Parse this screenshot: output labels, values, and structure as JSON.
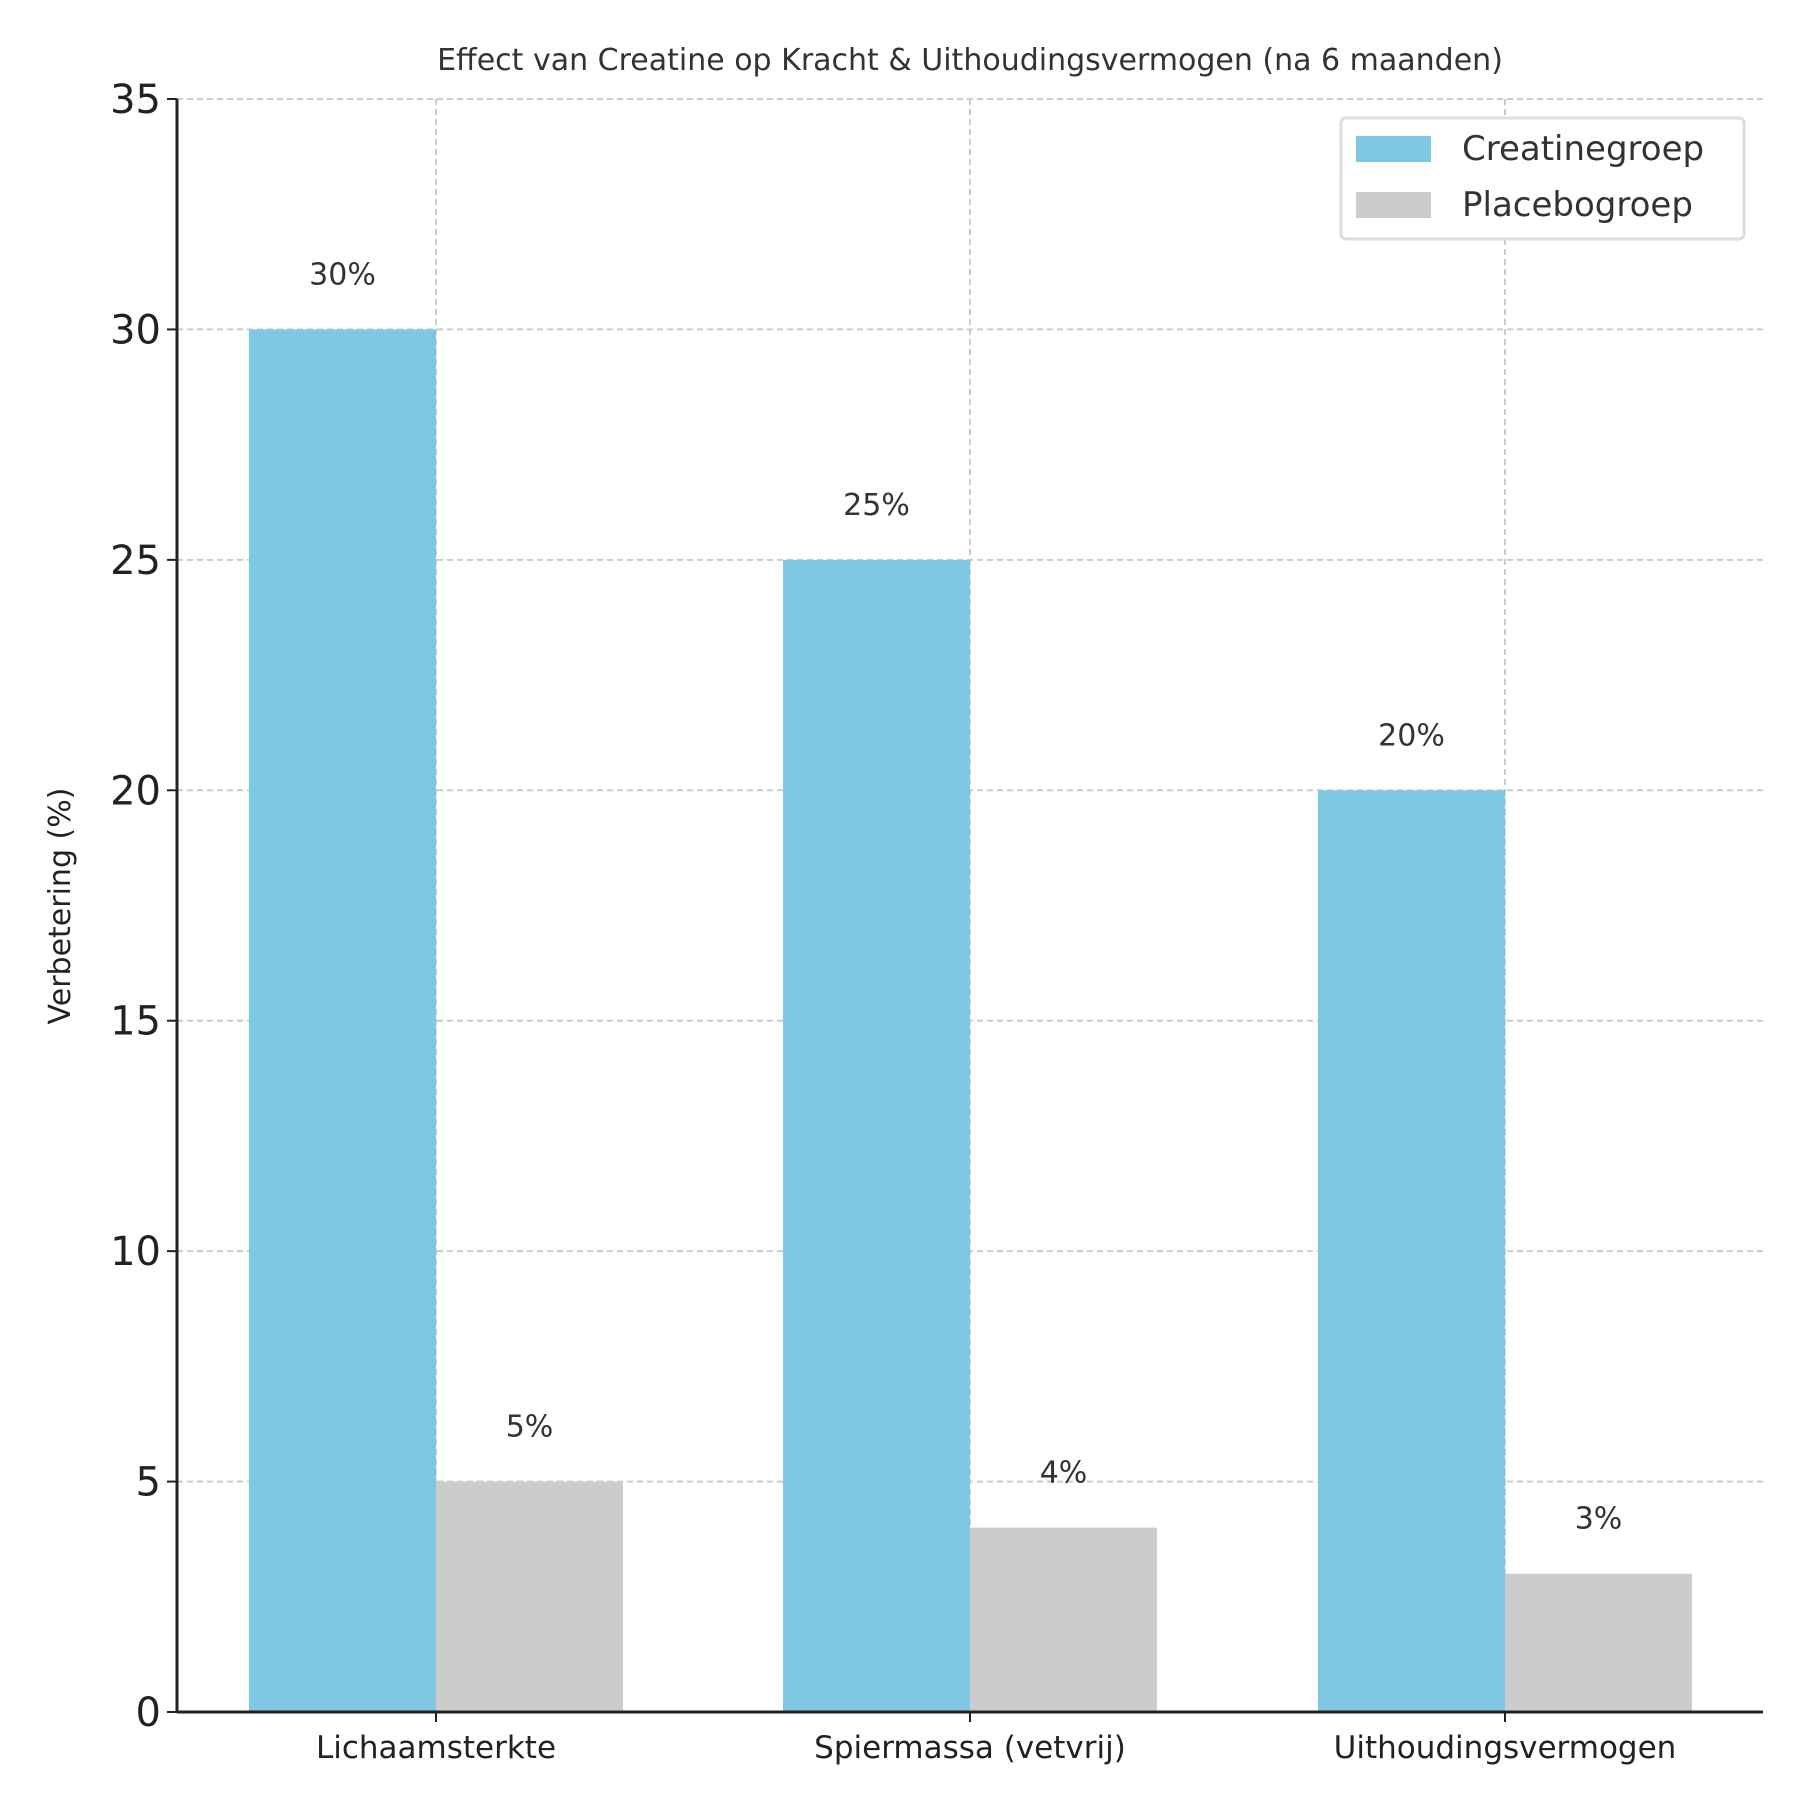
{
  "chart_data": {
    "type": "bar",
    "title": "Effect van Creatine op Kracht & Uithoudingsvermogen (na 6 maanden)",
    "xlabel": "",
    "ylabel": "Verbetering (%)",
    "ylim": [
      0,
      35
    ],
    "yticks": [
      0,
      5,
      10,
      15,
      20,
      25,
      30,
      35
    ],
    "grid": true,
    "legend_position": "top-right",
    "categories": [
      "Lichaamsterkte",
      "Spiermassa (vetvrij)",
      "Uithoudingsvermogen"
    ],
    "series": [
      {
        "name": "Creatinegroep",
        "color": "#7ec8e3",
        "values": [
          30,
          25,
          20
        ],
        "labels": [
          "30%",
          "25%",
          "20%"
        ]
      },
      {
        "name": "Placebogroep",
        "color": "#cccccc",
        "values": [
          5,
          4,
          3
        ],
        "labels": [
          "5%",
          "4%",
          "3%"
        ]
      }
    ]
  }
}
